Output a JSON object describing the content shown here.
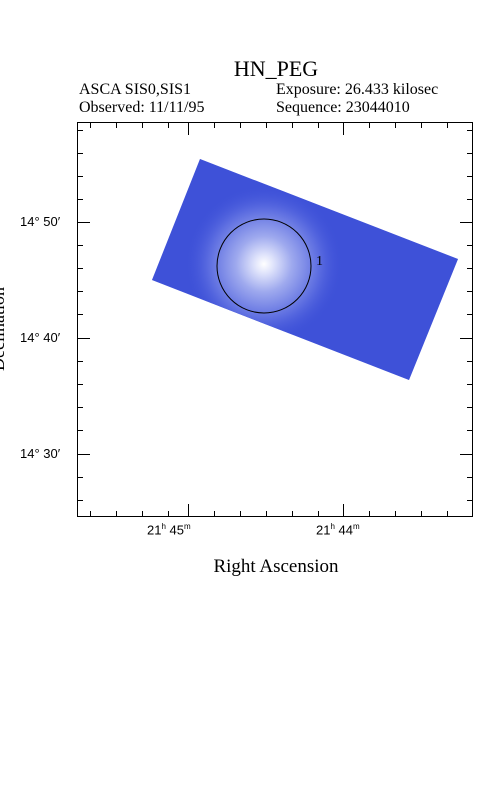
{
  "title": "HN_PEG",
  "header": {
    "instrument": "ASCA SIS0,SIS1",
    "exposure": "Exposure: 26.433 kilosec",
    "observed": "Observed: 11/11/95",
    "sequence": "Sequence: 23044010"
  },
  "axes": {
    "xlabel": "Right Ascension",
    "ylabel": "Declination",
    "x_ticks": [
      {
        "h": "21",
        "m": "45"
      },
      {
        "h": "21",
        "m": "44"
      }
    ],
    "y_ticks": [
      "14° 50′",
      "14° 40′",
      "14° 30′"
    ]
  },
  "source": {
    "label": "1"
  },
  "colors": {
    "image_blue": "#3b4fd8",
    "bright": "#ffffff",
    "frame": "#000000"
  }
}
